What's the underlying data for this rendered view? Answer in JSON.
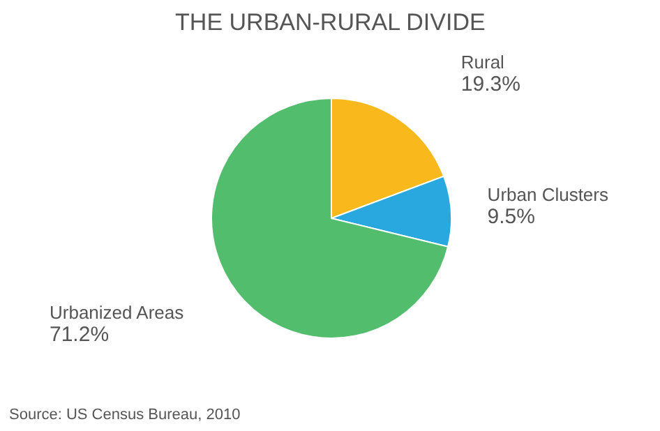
{
  "chart_data": {
    "type": "pie",
    "title": "THE URBAN-RURAL DIVIDE",
    "categories": [
      "Rural",
      "Urban Clusters",
      "Urbanized Areas"
    ],
    "values": [
      19.3,
      9.5,
      71.2
    ],
    "colors": [
      "#f9b81b",
      "#29a8e0",
      "#52bd6c"
    ],
    "value_labels": [
      "19.3%",
      "9.5%",
      "71.2%"
    ],
    "annotations": [
      "Source: US Census Bureau, 2010"
    ]
  }
}
